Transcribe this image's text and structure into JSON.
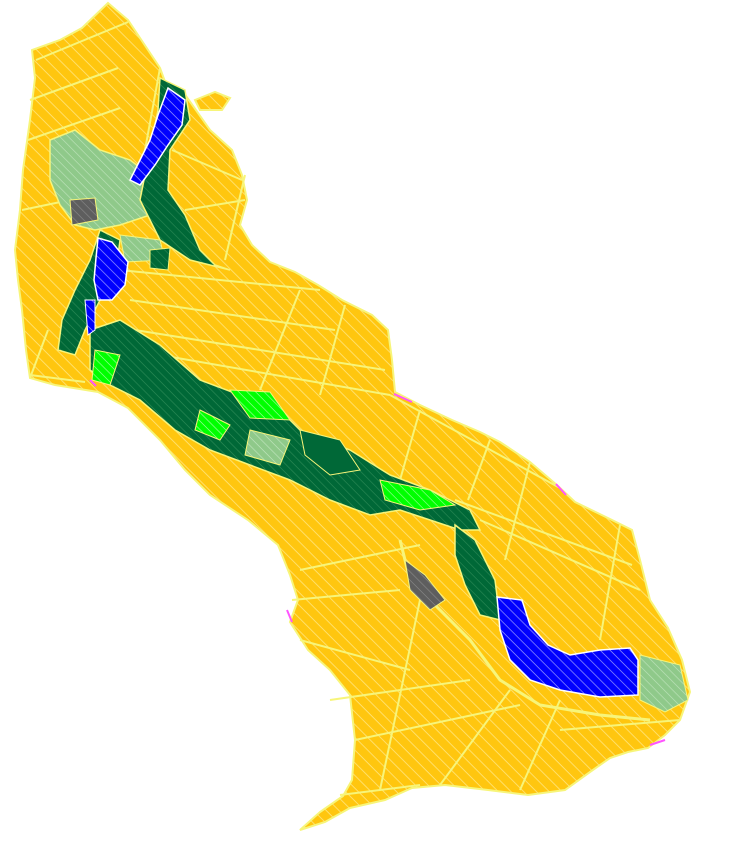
{
  "map": {
    "legend_colors": {
      "arable_land": "#ffc60f",
      "water": "#0000ff",
      "forest_dark": "#006837",
      "forest_medium": "#1a8a2a",
      "grassland_light": "#00ff00",
      "meadow_pale": "#8fc98a",
      "built_up": "#5e5e5e",
      "roads_boundaries": "#f7f57a",
      "hatch": "#ffe680",
      "edge_marks": "#ff55ff"
    },
    "layers": [
      "land-use",
      "water-bodies",
      "woodland",
      "grassland",
      "settlement",
      "field-boundaries",
      "roads"
    ]
  }
}
